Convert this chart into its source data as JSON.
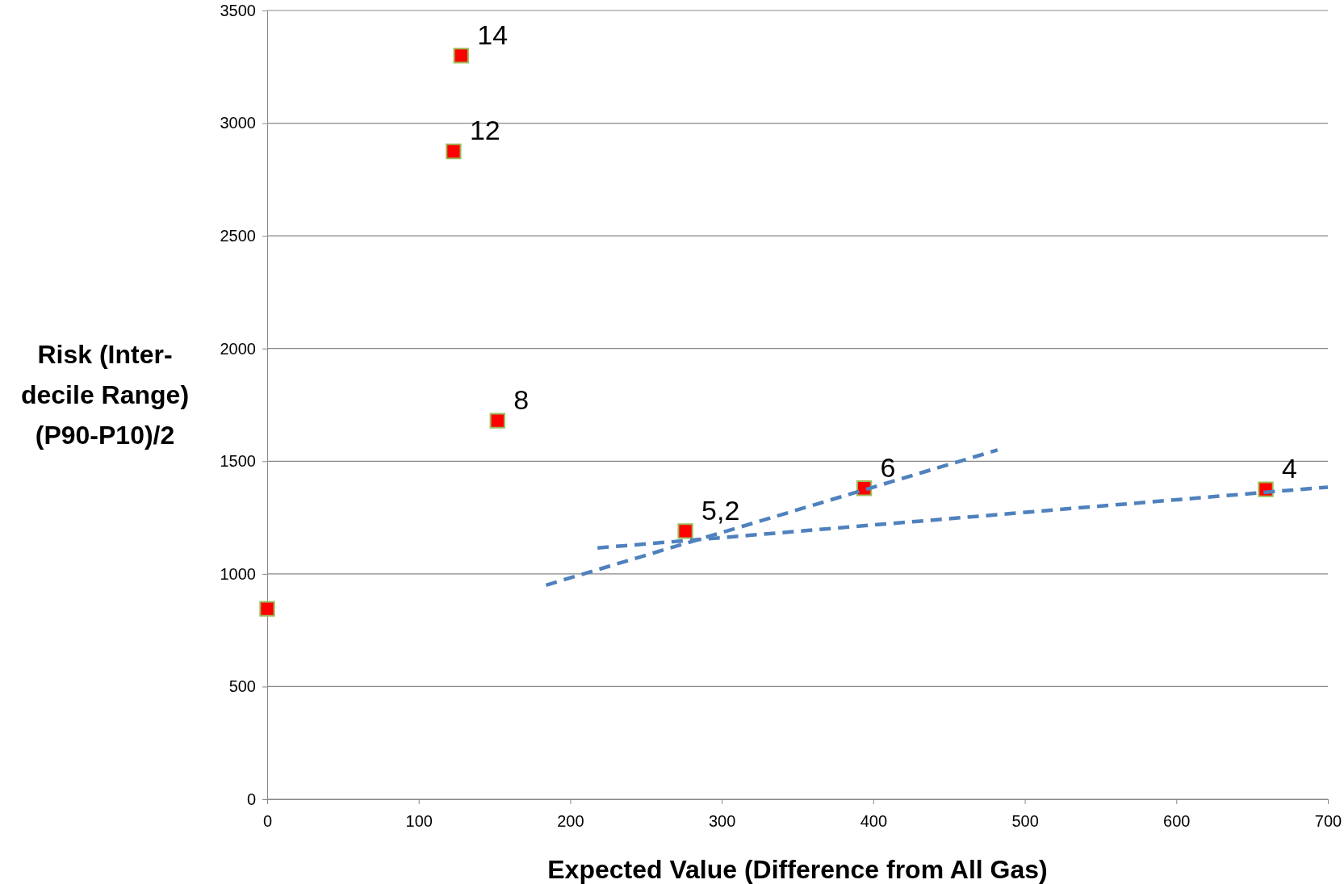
{
  "chart_data": {
    "type": "scatter",
    "xlabel": "Expected Value (Difference from All Gas)",
    "ylabel": "Risk (Inter-decile Range) (P90-P10)/2",
    "xlim": [
      0,
      700
    ],
    "xticks": [
      0,
      100,
      200,
      300,
      400,
      500,
      600,
      700
    ],
    "ylim": [
      0,
      3500
    ],
    "yticks": [
      0,
      500,
      1000,
      1500,
      2000,
      2500,
      3000,
      3500
    ],
    "grid": "y",
    "marker": "square",
    "series": [
      {
        "color": "#ff0000",
        "x": [
          0,
          128,
          123,
          152,
          276,
          394,
          659
        ],
        "values": [
          845,
          3300,
          2875,
          1680,
          1190,
          1380,
          1375
        ]
      },
      {
        "type": "line",
        "color": "#4f81bd",
        "line_style": "dashed",
        "marker": "none",
        "x": [
          184,
          482
        ],
        "values": [
          950,
          1550
        ]
      },
      {
        "type": "line",
        "color": "#4f81bd",
        "line_style": "dashed",
        "marker": "none",
        "x": [
          218,
          700
        ],
        "values": [
          1115,
          1385
        ]
      }
    ],
    "annotations": [
      {
        "text": "14",
        "x": 128,
        "y": 3300
      },
      {
        "text": "12",
        "x": 123,
        "y": 2875
      },
      {
        "text": "8",
        "x": 152,
        "y": 1680
      },
      {
        "text": "5,2",
        "x": 276,
        "y": 1190
      },
      {
        "text": "6",
        "x": 394,
        "y": 1380
      },
      {
        "text": "4",
        "x": 659,
        "y": 1375
      }
    ]
  }
}
